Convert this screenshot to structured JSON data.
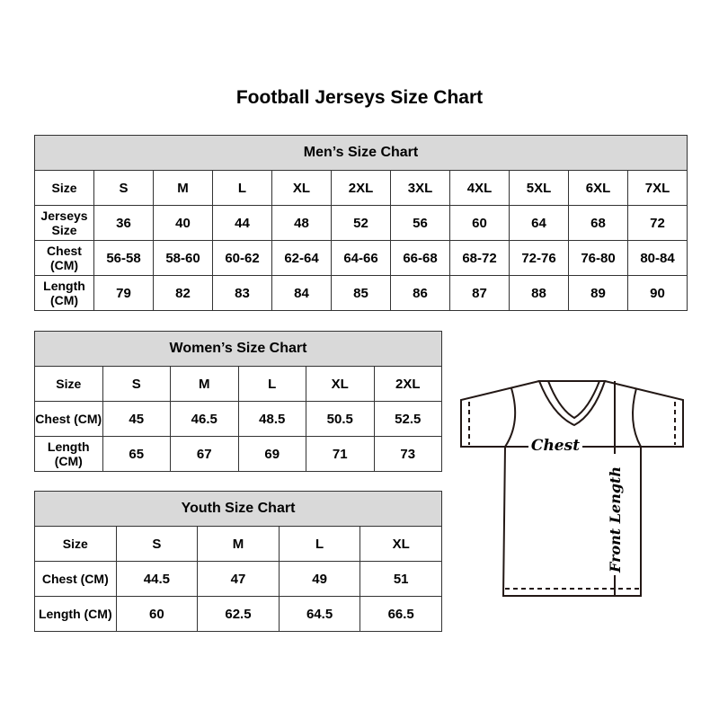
{
  "title": "Football Jerseys Size Chart",
  "men": {
    "title": "Men’s Size Chart",
    "rows": [
      [
        "Size",
        "S",
        "M",
        "L",
        "XL",
        "2XL",
        "3XL",
        "4XL",
        "5XL",
        "6XL",
        "7XL"
      ],
      [
        "Jerseys Size",
        "36",
        "40",
        "44",
        "48",
        "52",
        "56",
        "60",
        "64",
        "68",
        "72"
      ],
      [
        "Chest (CM)",
        "56-58",
        "58-60",
        "60-62",
        "62-64",
        "64-66",
        "66-68",
        "68-72",
        "72-76",
        "76-80",
        "80-84"
      ],
      [
        "Length (CM)",
        "79",
        "82",
        "83",
        "84",
        "85",
        "86",
        "87",
        "88",
        "89",
        "90"
      ]
    ]
  },
  "women": {
    "title": "Women’s Size Chart",
    "rows": [
      [
        "Size",
        "S",
        "M",
        "L",
        "XL",
        "2XL"
      ],
      [
        "Chest (CM)",
        "45",
        "46.5",
        "48.5",
        "50.5",
        "52.5"
      ],
      [
        "Length (CM)",
        "65",
        "67",
        "69",
        "71",
        "73"
      ]
    ]
  },
  "youth": {
    "title": "Youth Size Chart",
    "rows": [
      [
        "Size",
        "S",
        "M",
        "L",
        "XL"
      ],
      [
        "Chest (CM)",
        "44.5",
        "47",
        "49",
        "51"
      ],
      [
        "Length (CM)",
        "60",
        "62.5",
        "64.5",
        "66.5"
      ]
    ]
  },
  "diagram": {
    "chest_label": "Chest",
    "length_label": "Front Length",
    "icon": "jersey-outline-icon"
  }
}
